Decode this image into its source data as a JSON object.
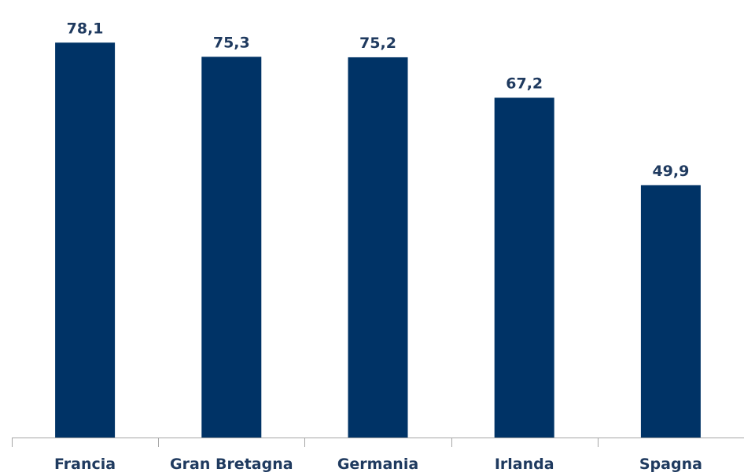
{
  "chart_data": {
    "type": "bar",
    "categories": [
      "Francia",
      "Gran Bretagna",
      "Germania",
      "Irlanda",
      "Spagna"
    ],
    "values": [
      78.1,
      75.3,
      75.2,
      67.2,
      49.9
    ],
    "value_labels": [
      "78,1",
      "75,3",
      "75,2",
      "67,2",
      "49,9"
    ],
    "title": "",
    "xlabel": "",
    "ylabel": "",
    "ylim": [
      0,
      82
    ],
    "grid": false,
    "legend": "none",
    "colors": {
      "bar": "#003366",
      "text": "#1f3a5f",
      "axis": "#a6a6a6"
    }
  }
}
